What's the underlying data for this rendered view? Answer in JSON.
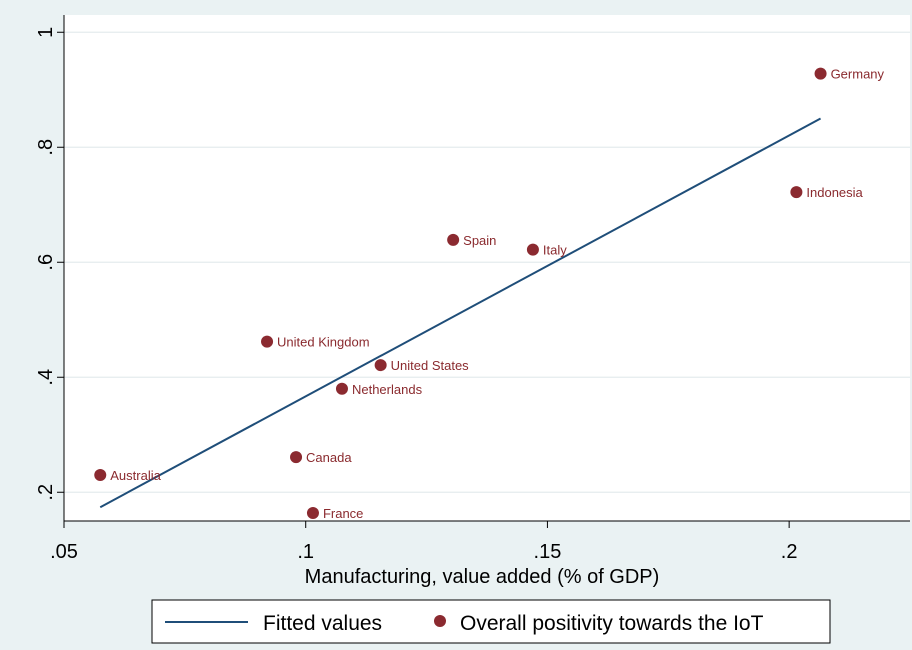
{
  "chart_data": {
    "type": "scatter",
    "xlabel": "Manufacturing, value added (% of GDP)",
    "ylabel": "",
    "xlim": [
      0.05,
      0.225
    ],
    "ylim": [
      0.15,
      1.03
    ],
    "x_ticks": [
      0.05,
      0.1,
      0.15,
      0.2
    ],
    "x_tick_labels": [
      ".05",
      ".1",
      ".15",
      ".2"
    ],
    "y_ticks": [
      0.2,
      0.4,
      0.6,
      0.8,
      1.0
    ],
    "y_tick_labels": [
      ".2",
      ".4",
      ".6",
      ".8",
      "1"
    ],
    "grid": true,
    "legend_placement": "bottom",
    "colors": {
      "scatter": "#8b2a30",
      "fit": "#1f4e79",
      "background": "#eaf2f3"
    },
    "series": [
      {
        "name": "Overall positivity towards the IoT",
        "kind": "scatter",
        "points": [
          {
            "label": "Germany",
            "x": 0.2065,
            "y": 0.928
          },
          {
            "label": "Indonesia",
            "x": 0.2015,
            "y": 0.722
          },
          {
            "label": "Spain",
            "x": 0.1305,
            "y": 0.639
          },
          {
            "label": "Italy",
            "x": 0.147,
            "y": 0.622
          },
          {
            "label": "United Kingdom",
            "x": 0.092,
            "y": 0.462
          },
          {
            "label": "United States",
            "x": 0.1155,
            "y": 0.421
          },
          {
            "label": "Netherlands",
            "x": 0.1075,
            "y": 0.38
          },
          {
            "label": "Canada",
            "x": 0.098,
            "y": 0.261
          },
          {
            "label": "Australia",
            "x": 0.0575,
            "y": 0.23
          },
          {
            "label": "France",
            "x": 0.1015,
            "y": 0.164
          }
        ]
      },
      {
        "name": "Fitted values",
        "kind": "line",
        "points": [
          {
            "x": 0.0575,
            "y": 0.174
          },
          {
            "x": 0.2065,
            "y": 0.85
          }
        ]
      }
    ]
  }
}
